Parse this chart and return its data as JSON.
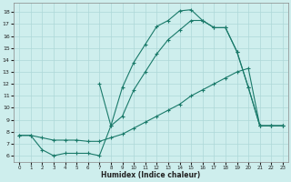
{
  "xlabel": "Humidex (Indice chaleur)",
  "bg_color": "#ceeeed",
  "line_color": "#1a7a6a",
  "grid_color": "#aed8d8",
  "xlim": [
    -0.5,
    23.5
  ],
  "ylim": [
    5.5,
    18.8
  ],
  "xticks": [
    0,
    1,
    2,
    3,
    4,
    5,
    6,
    7,
    8,
    9,
    10,
    11,
    12,
    13,
    14,
    15,
    16,
    17,
    18,
    19,
    20,
    21,
    22,
    23
  ],
  "yticks": [
    6,
    7,
    8,
    9,
    10,
    11,
    12,
    13,
    14,
    15,
    16,
    17,
    18
  ],
  "curve1_x": [
    0,
    1,
    2,
    3,
    4,
    5,
    6,
    7,
    8,
    9,
    10,
    11,
    12,
    13,
    14,
    15,
    16,
    17,
    18,
    19,
    20,
    21,
    22,
    23
  ],
  "curve1_y": [
    7.7,
    7.7,
    7.5,
    7.3,
    7.3,
    7.3,
    7.2,
    7.2,
    7.5,
    7.8,
    8.3,
    8.8,
    9.3,
    9.8,
    10.3,
    11.0,
    11.5,
    12.0,
    12.5,
    13.0,
    13.3,
    8.5,
    8.5,
    8.5
  ],
  "curve2_x": [
    0,
    1,
    2,
    3,
    4,
    5,
    6,
    7,
    8,
    9,
    10,
    11,
    12,
    13,
    14,
    15,
    16,
    17,
    18,
    19,
    20,
    21,
    22,
    23
  ],
  "curve2_y": [
    7.7,
    7.7,
    6.5,
    6.0,
    6.2,
    6.2,
    6.2,
    6.0,
    8.5,
    11.7,
    13.8,
    15.3,
    16.8,
    17.3,
    18.1,
    18.2,
    17.3,
    16.7,
    16.7,
    14.7,
    11.7,
    8.5,
    8.5,
    8.5
  ],
  "curve3_x": [
    7,
    8,
    9,
    10,
    11,
    12,
    13,
    14,
    15,
    16,
    17,
    18,
    19,
    20,
    21,
    22,
    23
  ],
  "curve3_y": [
    12.0,
    8.5,
    9.3,
    11.5,
    13.0,
    14.5,
    15.7,
    16.5,
    17.3,
    17.3,
    16.7,
    16.7,
    14.7,
    11.7,
    8.5,
    8.5,
    8.5
  ]
}
